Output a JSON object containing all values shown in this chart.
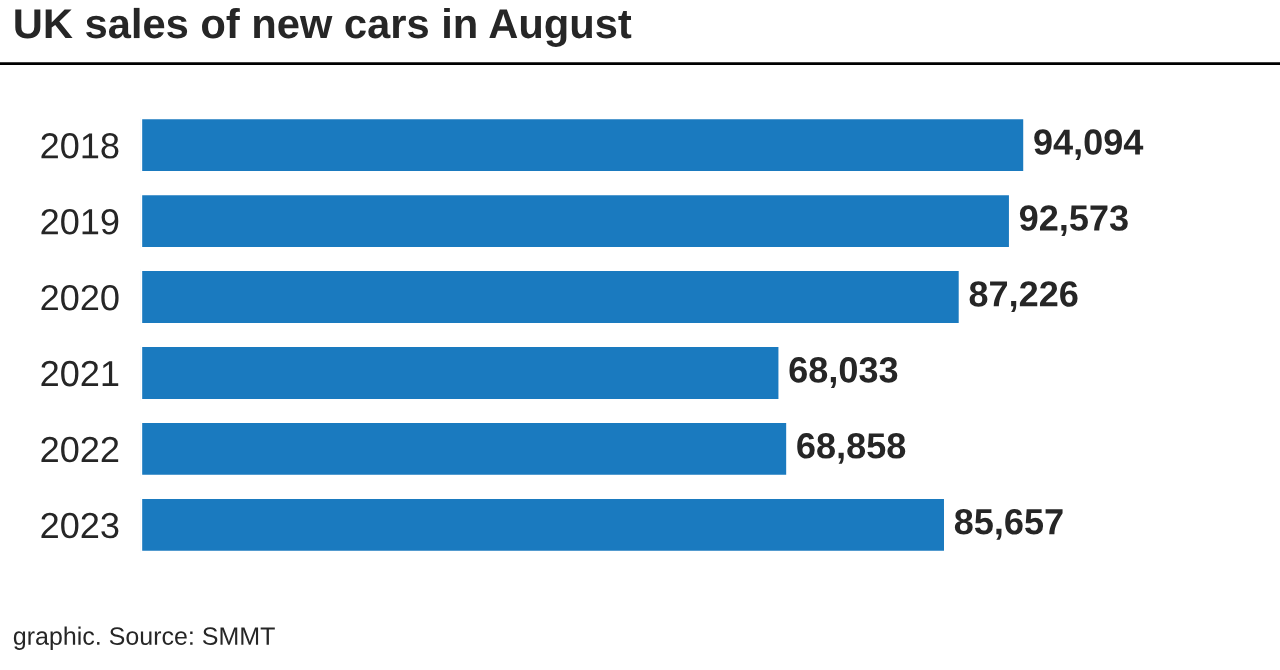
{
  "chart_data": {
    "type": "bar",
    "orientation": "horizontal",
    "title": "UK sales of new cars in August",
    "categories": [
      "2018",
      "2019",
      "2020",
      "2021",
      "2022",
      "2023"
    ],
    "values": [
      94094,
      92573,
      87226,
      68033,
      68858,
      85657
    ],
    "color": "#1a7abf",
    "data_labels": true,
    "value_labels": [
      "94,094",
      "92,573",
      "87,226",
      "68,033",
      "68,858",
      "85,657"
    ],
    "grid": false,
    "legend": false,
    "tick_labels": "y",
    "annotations": [
      "graphic. Source: SMMT"
    ]
  }
}
